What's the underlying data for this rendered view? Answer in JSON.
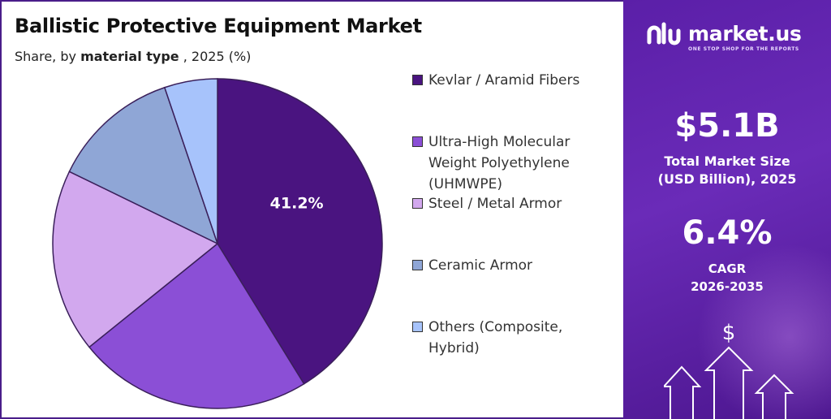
{
  "header": {
    "title": "Ballistic Protective Equipment Market",
    "subtitle_prefix": "Share, by ",
    "subtitle_strong": "material type",
    "subtitle_suffix": " , 2025 (%)"
  },
  "chart_data": {
    "type": "pie",
    "title": "Ballistic Protective Equipment Market",
    "subtitle": "Share, by material type , 2025 (%)",
    "slices": [
      {
        "name": "Kevlar / Aramid Fibers",
        "value": 41.2,
        "color": "#4a1480",
        "label": "41.2%"
      },
      {
        "name": "Ultra-High Molecular Weight Polyethylene (UHMWPE)",
        "value": 23.0,
        "color": "#8b4fd6",
        "label": ""
      },
      {
        "name": "Steel / Metal Armor",
        "value": 18.0,
        "color": "#d2a8ee",
        "label": ""
      },
      {
        "name": "Ceramic Armor",
        "value": 12.6,
        "color": "#8fa6d6",
        "label": ""
      },
      {
        "name": "Others (Composite, Hybrid)",
        "value": 5.2,
        "color": "#a7c3fb",
        "label": ""
      }
    ],
    "legend_position": "right"
  },
  "legend": {
    "items": [
      {
        "label": "Kevlar / Aramid Fibers",
        "color": "#4a1480"
      },
      {
        "label": "Ultra-High Molecular Weight Polyethylene (UHMWPE)",
        "color": "#8b4fd6"
      },
      {
        "label": "Steel / Metal Armor",
        "color": "#d2a8ee"
      },
      {
        "label": "Ceramic Armor",
        "color": "#8fa6d6"
      },
      {
        "label": "Others (Composite, Hybrid)",
        "color": "#a7c3fb"
      }
    ]
  },
  "sidebar": {
    "brand": "market.us",
    "tagline": "ONE STOP SHOP FOR THE REPORTS",
    "market_size_value": "$5.1B",
    "market_size_label_1": "Total Market Size",
    "market_size_label_2": "(USD Billion), 2025",
    "cagr_value": "6.4%",
    "cagr_label_1": "CAGR",
    "cagr_label_2": "2026-2035",
    "dollar_symbol": "$",
    "background_color": "#5b1fa8"
  }
}
